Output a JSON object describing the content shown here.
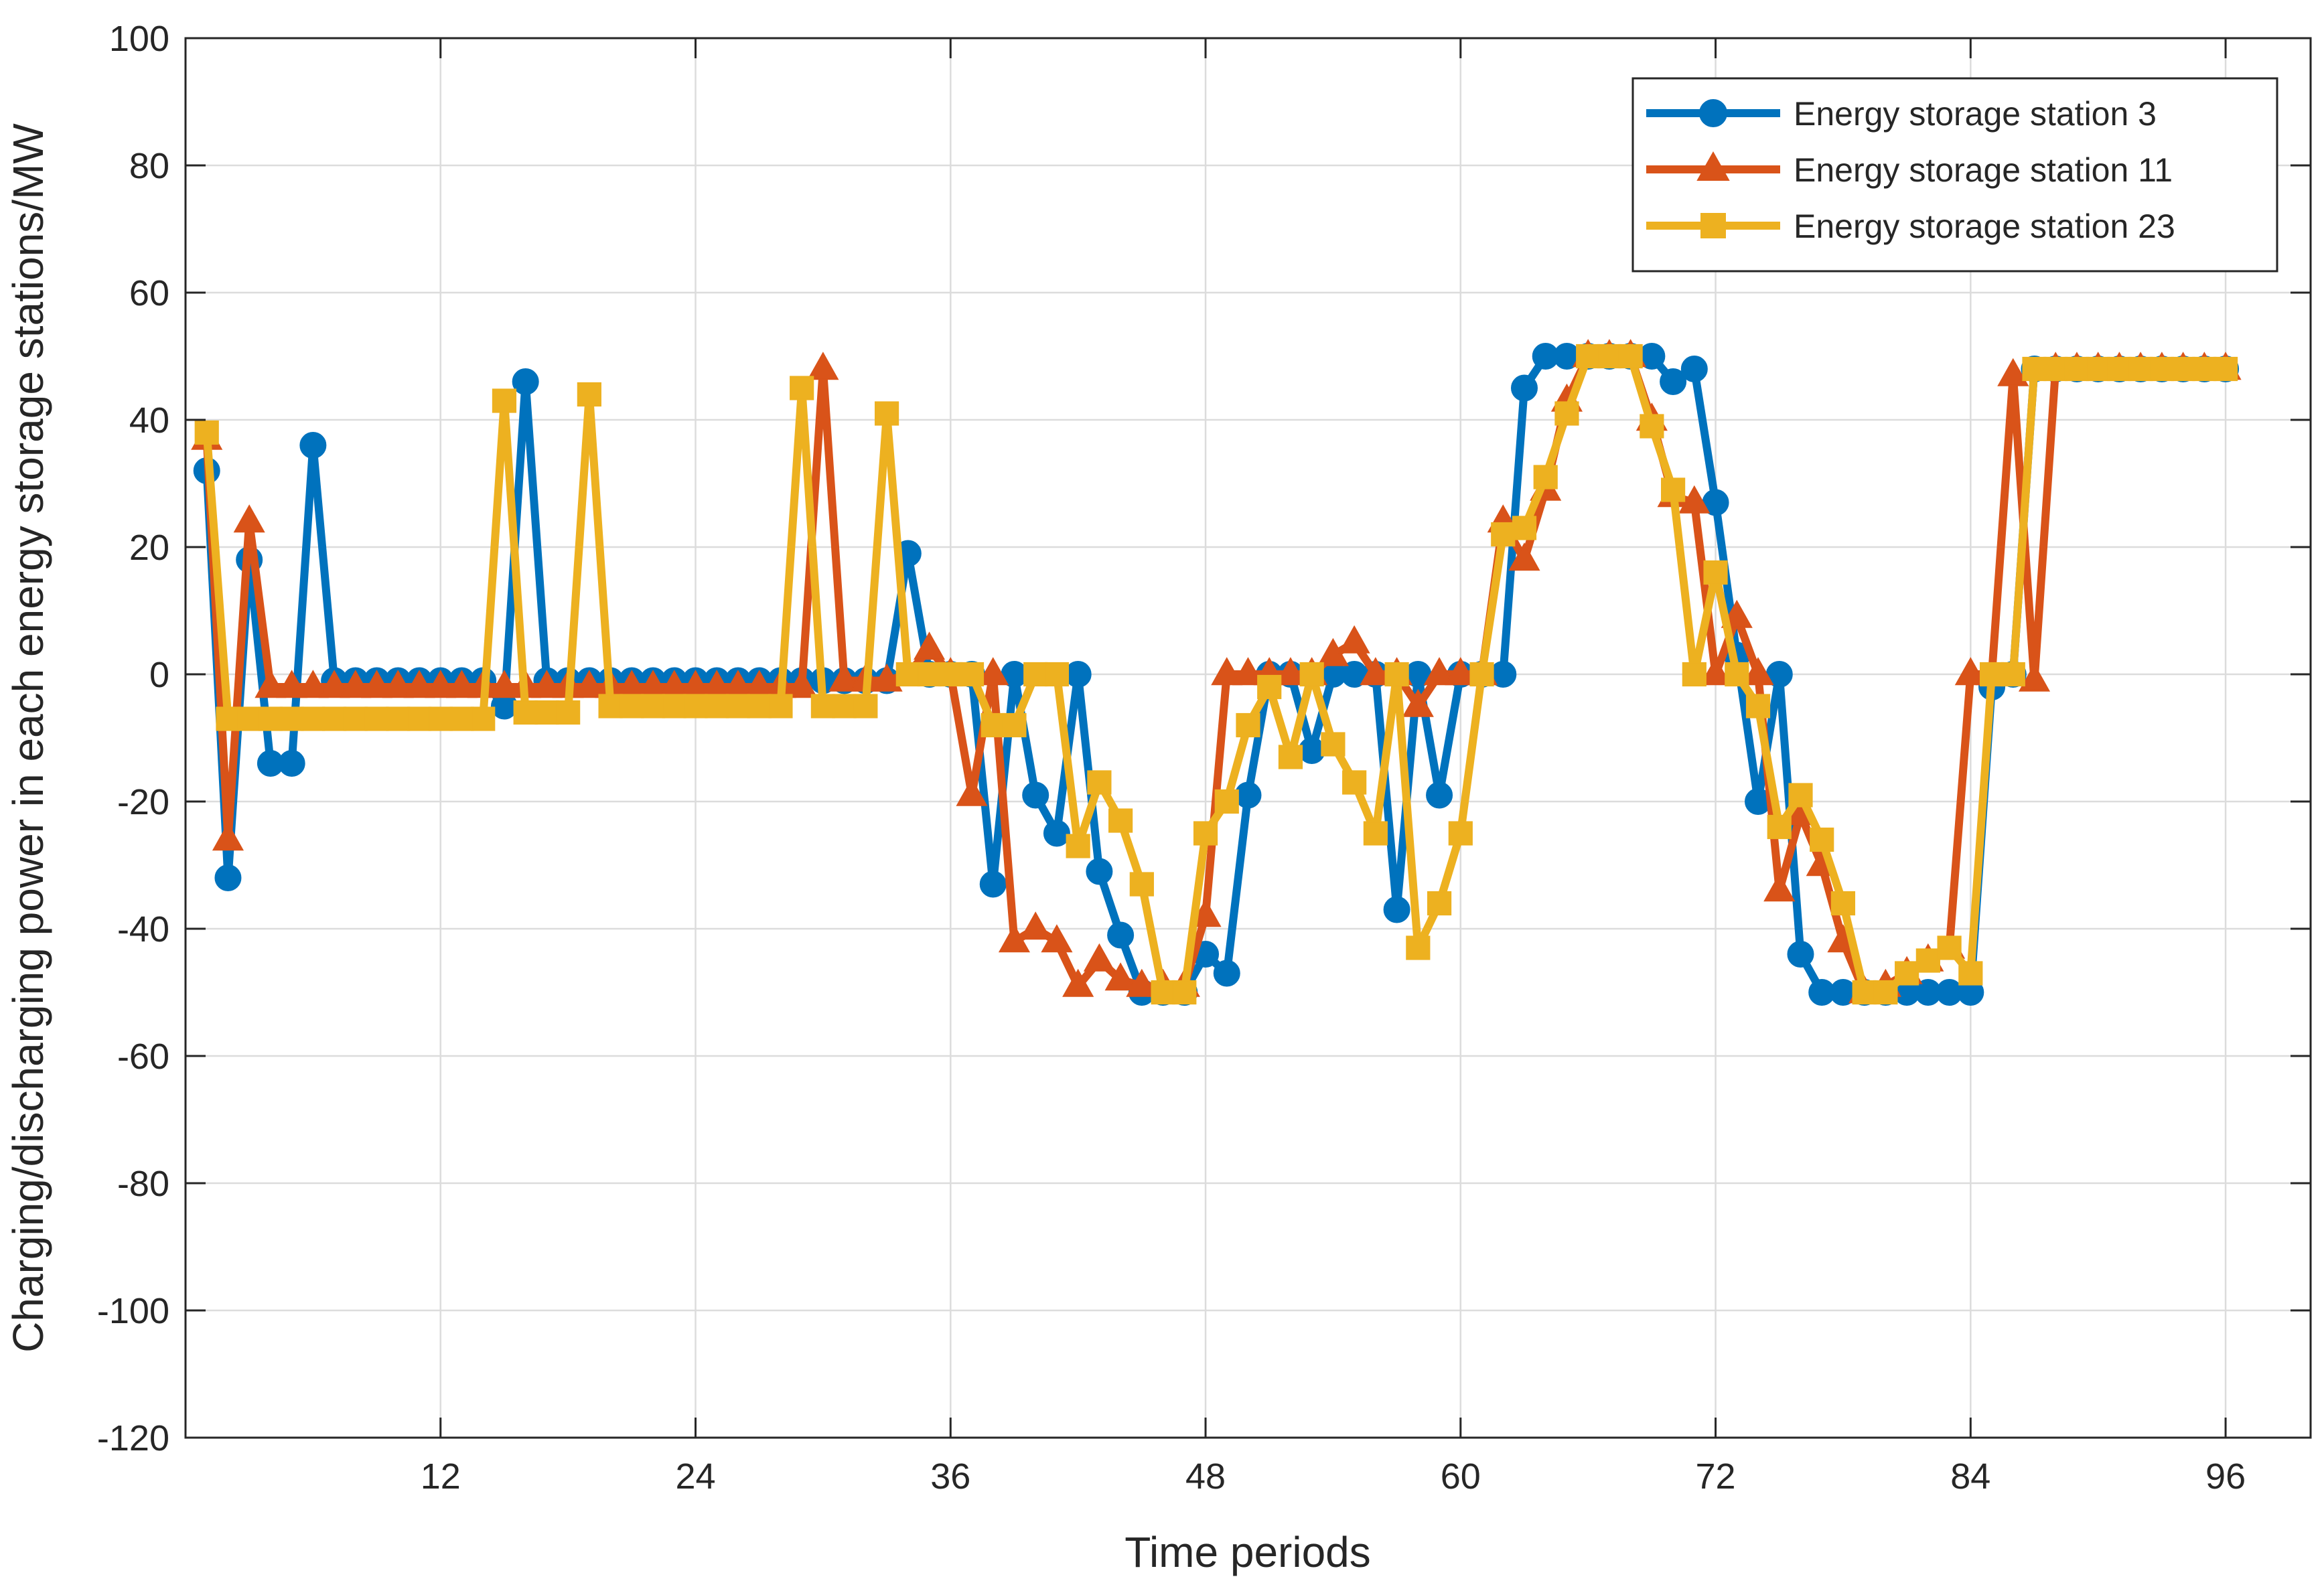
{
  "chart_data": {
    "type": "line",
    "title": "",
    "xlabel": "Time periods",
    "ylabel": "Charging/discharging power in each energy storage stations/MW",
    "xlim": [
      0,
      100
    ],
    "ylim": [
      -120,
      100
    ],
    "xticks": [
      12,
      24,
      36,
      48,
      60,
      72,
      84,
      96
    ],
    "yticks": [
      -120,
      -100,
      -80,
      -60,
      -40,
      -20,
      0,
      20,
      40,
      60,
      80,
      100
    ],
    "xtick_labels": [
      "12",
      "24",
      "36",
      "48",
      "60",
      "72",
      "84",
      "96"
    ],
    "ytick_labels": [
      "-120",
      "-100",
      "-80",
      "-60",
      "-40",
      "-20",
      "0",
      "20",
      "40",
      "60",
      "80",
      "100"
    ],
    "grid": true,
    "legend_position": "top-right",
    "x": [
      1,
      2,
      3,
      4,
      5,
      6,
      7,
      8,
      9,
      10,
      11,
      12,
      13,
      14,
      15,
      16,
      17,
      18,
      19,
      20,
      21,
      22,
      23,
      24,
      25,
      26,
      27,
      28,
      29,
      30,
      31,
      32,
      33,
      34,
      35,
      36,
      37,
      38,
      39,
      40,
      41,
      42,
      43,
      44,
      45,
      46,
      47,
      48,
      49,
      50,
      51,
      52,
      53,
      54,
      55,
      56,
      57,
      58,
      59,
      60,
      61,
      62,
      63,
      64,
      65,
      66,
      67,
      68,
      69,
      70,
      71,
      72,
      73,
      74,
      75,
      76,
      77,
      78,
      79,
      80,
      81,
      82,
      83,
      84,
      85,
      86,
      87,
      88,
      89,
      90,
      91,
      92,
      93,
      94,
      95,
      96
    ],
    "series": [
      {
        "name": "Energy storage station 3",
        "color": "#0072BD",
        "marker": "circle",
        "values": [
          32,
          -32,
          18,
          -14,
          -14,
          36,
          -1,
          -1,
          -1,
          -1,
          -1,
          -1,
          -1,
          -1,
          -5,
          46,
          -1,
          -1,
          -1,
          -1,
          -1,
          -1,
          -1,
          -1,
          -1,
          -1,
          -1,
          -1,
          -1,
          -1,
          -1,
          -1,
          -1,
          19,
          0,
          0,
          0,
          -33,
          0,
          -19,
          -25,
          0,
          -31,
          -41,
          -50,
          -50,
          -50,
          -44,
          -47,
          -19,
          0,
          0,
          -12,
          0,
          0,
          0,
          -37,
          0,
          -19,
          0,
          0,
          0,
          45,
          50,
          50,
          50,
          50,
          50,
          50,
          46,
          48,
          27,
          3,
          -20,
          0,
          -44,
          -50,
          -50,
          -50,
          -50,
          -50,
          -50,
          -50,
          -50,
          -2,
          0,
          48,
          48,
          48,
          48,
          48,
          48,
          48,
          48,
          48,
          48
        ]
      },
      {
        "name": "Energy storage station 11",
        "color": "#D95319",
        "marker": "triangle",
        "values": [
          37,
          -26,
          24,
          -2,
          -2,
          -2,
          -2,
          -2,
          -2,
          -2,
          -2,
          -2,
          -2,
          -2,
          -2,
          -2,
          -2,
          -2,
          -2,
          -2,
          -2,
          -2,
          -2,
          -2,
          -2,
          -2,
          -2,
          -2,
          -2,
          48,
          -1,
          -1,
          -1,
          0,
          4,
          0,
          -19,
          0,
          -42,
          -40,
          -42,
          -49,
          -45,
          -48,
          -49,
          -49,
          -49,
          -38,
          0,
          0,
          0,
          0,
          0,
          3,
          5,
          0,
          0,
          -5,
          0,
          0,
          0,
          24,
          18,
          29,
          43,
          50,
          50,
          50,
          40,
          28,
          27,
          0,
          9,
          0,
          -34,
          -22,
          -30,
          -42,
          -50,
          -49,
          -47,
          -45,
          -43,
          0,
          0,
          47,
          -1,
          48,
          48,
          48,
          48,
          48,
          48,
          48,
          48,
          48
        ]
      },
      {
        "name": "Energy storage station 23",
        "color": "#EDB120",
        "marker": "square",
        "values": [
          38,
          -7,
          -7,
          -7,
          -7,
          -7,
          -7,
          -7,
          -7,
          -7,
          -7,
          -7,
          -7,
          -7,
          43,
          -6,
          -6,
          -6,
          44,
          -5,
          -5,
          -5,
          -5,
          -5,
          -5,
          -5,
          -5,
          -5,
          45,
          -5,
          -5,
          -5,
          41,
          0,
          0,
          0,
          0,
          -8,
          -8,
          0,
          0,
          -27,
          -17,
          -23,
          -33,
          -50,
          -50,
          -25,
          -20,
          -8,
          -2,
          -13,
          0,
          -11,
          -17,
          -25,
          0,
          -43,
          -36,
          -25,
          0,
          22,
          23,
          31,
          41,
          50,
          50,
          50,
          39,
          29,
          0,
          16,
          0,
          -5,
          -24,
          -19,
          -26,
          -36,
          -50,
          -50,
          -47,
          -45,
          -43,
          -47,
          0,
          0,
          48,
          48,
          48,
          48,
          48,
          48,
          48,
          48,
          48,
          48
        ]
      }
    ]
  }
}
